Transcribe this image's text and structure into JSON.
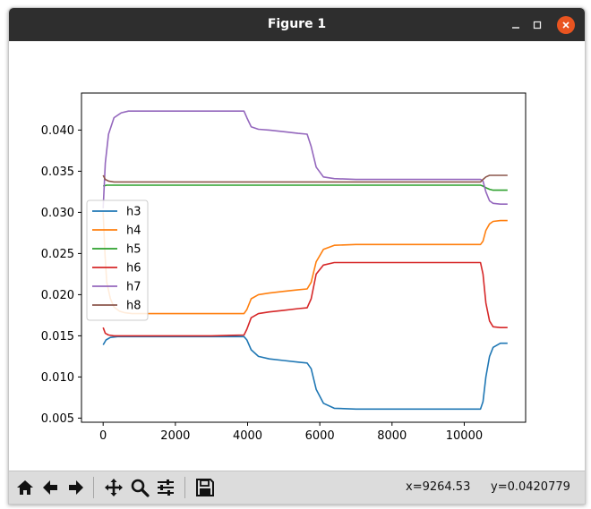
{
  "window": {
    "title": "Figure 1"
  },
  "toolbar": {
    "buttons": [
      "home-icon",
      "back-icon",
      "forward-icon",
      "pan-icon",
      "zoom-icon",
      "configure-subplots-icon",
      "save-icon"
    ],
    "x_readout": "x=9264.53",
    "y_readout": "y=0.0420779"
  },
  "chart_data": {
    "type": "line",
    "title": "",
    "xlabel": "",
    "ylabel": "",
    "xlim": [
      -600,
      11700
    ],
    "ylim": [
      0.0045,
      0.0445
    ],
    "xticks": [
      0,
      2000,
      4000,
      6000,
      8000,
      10000
    ],
    "xtick_labels": [
      "0",
      "2000",
      "4000",
      "6000",
      "8000",
      "10000"
    ],
    "yticks": [
      0.005,
      0.01,
      0.015,
      0.02,
      0.025,
      0.03,
      0.035,
      0.04
    ],
    "ytick_labels": [
      "0.005",
      "0.010",
      "0.015",
      "0.020",
      "0.025",
      "0.030",
      "0.035",
      "0.040"
    ],
    "legend_position": "center-left",
    "grid": false,
    "series": [
      {
        "name": "h3",
        "color": "#1f77b4",
        "x": [
          0,
          80,
          200,
          400,
          1000,
          2000,
          3000,
          3900,
          3980,
          4100,
          4300,
          4600,
          5000,
          5400,
          5650,
          5760,
          5900,
          6100,
          6400,
          7000,
          8000,
          9000,
          10000,
          10450,
          10520,
          10600,
          10700,
          10800,
          11000,
          11200
        ],
        "values": [
          0.0139,
          0.0145,
          0.0148,
          0.0149,
          0.0149,
          0.0149,
          0.0149,
          0.0149,
          0.0145,
          0.0133,
          0.0125,
          0.0122,
          0.012,
          0.0118,
          0.0117,
          0.011,
          0.0085,
          0.0068,
          0.0062,
          0.0061,
          0.0061,
          0.0061,
          0.0061,
          0.0061,
          0.007,
          0.01,
          0.0125,
          0.0136,
          0.0141,
          0.0141
        ]
      },
      {
        "name": "h4",
        "color": "#ff7f0e",
        "x": [
          0,
          50,
          100,
          200,
          300,
          450,
          600,
          800,
          1000,
          2000,
          3000,
          3900,
          3980,
          4100,
          4300,
          4600,
          5000,
          5400,
          5650,
          5760,
          5900,
          6100,
          6400,
          7000,
          8000,
          9000,
          10000,
          10450,
          10520,
          10600,
          10700,
          10800,
          11000,
          11200
        ],
        "values": [
          0.03,
          0.025,
          0.0215,
          0.0195,
          0.0185,
          0.018,
          0.0178,
          0.0177,
          0.0177,
          0.0177,
          0.0177,
          0.0177,
          0.0182,
          0.0195,
          0.02,
          0.0202,
          0.0204,
          0.0206,
          0.0207,
          0.0215,
          0.024,
          0.0255,
          0.026,
          0.0261,
          0.0261,
          0.0261,
          0.0261,
          0.0261,
          0.0265,
          0.0278,
          0.0286,
          0.0289,
          0.029,
          0.029
        ]
      },
      {
        "name": "h5",
        "color": "#2ca02c",
        "x": [
          0,
          100,
          300,
          1000,
          2000,
          3000,
          4000,
          5000,
          6000,
          7000,
          8000,
          9000,
          10000,
          10450,
          10520,
          10600,
          10700,
          10800,
          11000,
          11200
        ],
        "values": [
          0.0332,
          0.0333,
          0.0333,
          0.0333,
          0.0333,
          0.0333,
          0.0333,
          0.0333,
          0.0333,
          0.0333,
          0.0333,
          0.0333,
          0.0333,
          0.0333,
          0.0332,
          0.033,
          0.0328,
          0.0327,
          0.0327,
          0.0327
        ]
      },
      {
        "name": "h6",
        "color": "#d62728",
        "x": [
          0,
          60,
          150,
          300,
          500,
          1000,
          2000,
          3000,
          3900,
          3980,
          4100,
          4300,
          4600,
          5000,
          5400,
          5650,
          5760,
          5900,
          6100,
          6400,
          7000,
          8000,
          9000,
          10000,
          10450,
          10520,
          10600,
          10700,
          10800,
          11000,
          11200
        ],
        "values": [
          0.016,
          0.0153,
          0.0151,
          0.015,
          0.015,
          0.015,
          0.015,
          0.015,
          0.0151,
          0.0158,
          0.0172,
          0.0177,
          0.0179,
          0.0181,
          0.0183,
          0.0184,
          0.0195,
          0.0225,
          0.0236,
          0.0239,
          0.0239,
          0.0239,
          0.0239,
          0.0239,
          0.0239,
          0.0225,
          0.019,
          0.0168,
          0.0161,
          0.016,
          0.016
        ]
      },
      {
        "name": "h7",
        "color": "#9467bd",
        "x": [
          0,
          60,
          150,
          300,
          500,
          700,
          1000,
          2000,
          3000,
          3900,
          3980,
          4100,
          4300,
          4600,
          5000,
          5400,
          5650,
          5760,
          5900,
          6100,
          6400,
          7000,
          8000,
          9000,
          10000,
          10450,
          10520,
          10600,
          10700,
          10800,
          11000,
          11200
        ],
        "values": [
          0.0305,
          0.036,
          0.0395,
          0.0415,
          0.0421,
          0.0423,
          0.0423,
          0.0423,
          0.0423,
          0.0423,
          0.0415,
          0.0404,
          0.0401,
          0.04,
          0.0398,
          0.0396,
          0.0395,
          0.038,
          0.0355,
          0.0343,
          0.0341,
          0.034,
          0.034,
          0.034,
          0.034,
          0.034,
          0.0338,
          0.0325,
          0.0314,
          0.0311,
          0.031,
          0.031
        ]
      },
      {
        "name": "h8",
        "color": "#8c564b",
        "x": [
          0,
          60,
          150,
          300,
          1000,
          2000,
          3000,
          4000,
          5000,
          6000,
          7000,
          8000,
          9000,
          10000,
          10450,
          10520,
          10600,
          10700,
          10800,
          11000,
          11200
        ],
        "values": [
          0.0345,
          0.034,
          0.0338,
          0.0337,
          0.0337,
          0.0337,
          0.0337,
          0.0337,
          0.0337,
          0.0337,
          0.0337,
          0.0337,
          0.0337,
          0.0337,
          0.0337,
          0.034,
          0.0343,
          0.0345,
          0.0345,
          0.0345,
          0.0345
        ]
      }
    ]
  }
}
